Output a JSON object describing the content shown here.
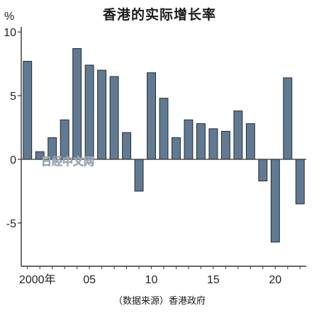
{
  "chart_data": {
    "type": "bar",
    "title": "香港的实际增长率",
    "source": "（数据来源）香港政府",
    "y_unit": "%",
    "watermark": "日经中文网",
    "x": [
      2000,
      2001,
      2002,
      2003,
      2004,
      2005,
      2006,
      2007,
      2008,
      2009,
      2010,
      2011,
      2012,
      2013,
      2014,
      2015,
      2016,
      2017,
      2018,
      2019,
      2020,
      2021,
      2022
    ],
    "values": [
      7.7,
      0.6,
      1.7,
      3.1,
      8.7,
      7.4,
      7.0,
      6.5,
      2.1,
      -2.5,
      6.8,
      4.8,
      1.7,
      3.1,
      2.8,
      2.4,
      2.2,
      3.8,
      2.8,
      -1.7,
      -6.5,
      6.4,
      -3.5
    ],
    "x_tick_labels": [
      {
        "x": 2000,
        "label": "2000年"
      },
      {
        "x": 2005,
        "label": "05"
      },
      {
        "x": 2010,
        "label": "10"
      },
      {
        "x": 2015,
        "label": "15"
      },
      {
        "x": 2020,
        "label": "20"
      }
    ],
    "y_ticks": [
      {
        "value": 10,
        "label": "10"
      },
      {
        "value": 5,
        "label": "5"
      },
      {
        "value": 0,
        "label": "0"
      },
      {
        "value": -5,
        "label": "-5"
      }
    ],
    "ylim": [
      -8.4,
      10.4
    ],
    "colors": {
      "bar_fill": "#627a91",
      "bar_stroke": "#1f2a35",
      "axis": "#333333"
    },
    "grid": false
  }
}
